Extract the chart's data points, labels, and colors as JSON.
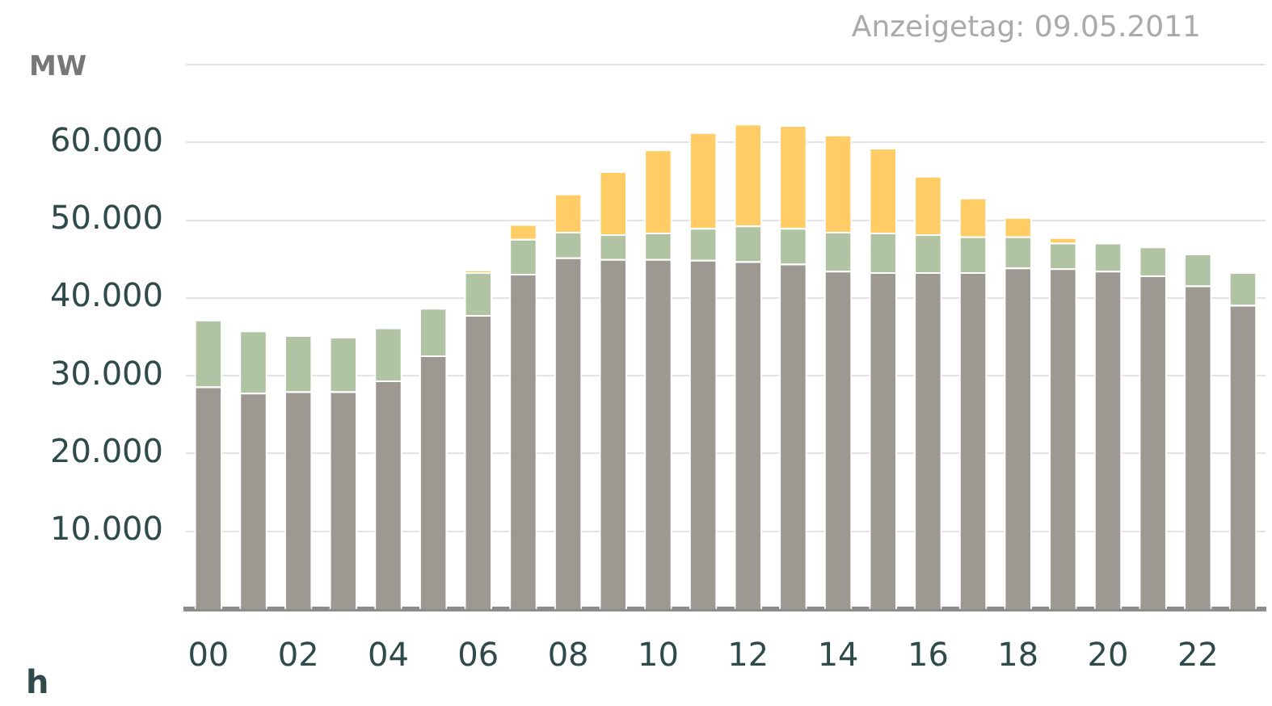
{
  "chart_data": {
    "type": "bar",
    "title": "Anzeigetag: 09.05.2011",
    "xlabel": "h",
    "ylabel": "MW",
    "stacked": true,
    "grid": "y",
    "categories": [
      "00",
      null,
      "02",
      null,
      "04",
      null,
      "06",
      null,
      "08",
      null,
      "10",
      null,
      "12",
      null,
      "14",
      null,
      "16",
      null,
      "18",
      null,
      "20",
      null,
      "22",
      null
    ],
    "series": [
      {
        "color": "#9e9893",
        "values": [
          28600,
          27800,
          28000,
          28000,
          29400,
          32600,
          37800,
          43100,
          45200,
          45000,
          45000,
          44900,
          44700,
          44400,
          43500,
          43300,
          43300,
          43300,
          43900,
          43800,
          43500,
          42900,
          41600,
          39100
        ]
      },
      {
        "color": "#b0c4a4",
        "values": [
          8600,
          8000,
          7200,
          7000,
          6800,
          6100,
          5500,
          4500,
          3300,
          3200,
          3400,
          4100,
          4600,
          4600,
          5000,
          5100,
          4900,
          4600,
          4000,
          3300,
          3600,
          3700,
          4100,
          4200
        ]
      },
      {
        "color": "#ffcc66",
        "values": [
          null,
          null,
          null,
          null,
          null,
          null,
          300,
          1900,
          4900,
          8100,
          10700,
          12300,
          13100,
          13200,
          12500,
          10900,
          7500,
          5000,
          2500,
          700,
          null,
          null,
          null,
          null
        ]
      }
    ],
    "ylim": [
      0,
      70000
    ],
    "yticks": [
      {
        "value": 10000,
        "label": "10.000"
      },
      {
        "value": 20000,
        "label": "20.000"
      },
      {
        "value": 30000,
        "label": "30.000"
      },
      {
        "value": 40000,
        "label": "40.000"
      },
      {
        "value": 50000,
        "label": "50.000"
      },
      {
        "value": 60000,
        "label": "60.000"
      },
      {
        "value": 70000,
        "label": null
      }
    ]
  }
}
